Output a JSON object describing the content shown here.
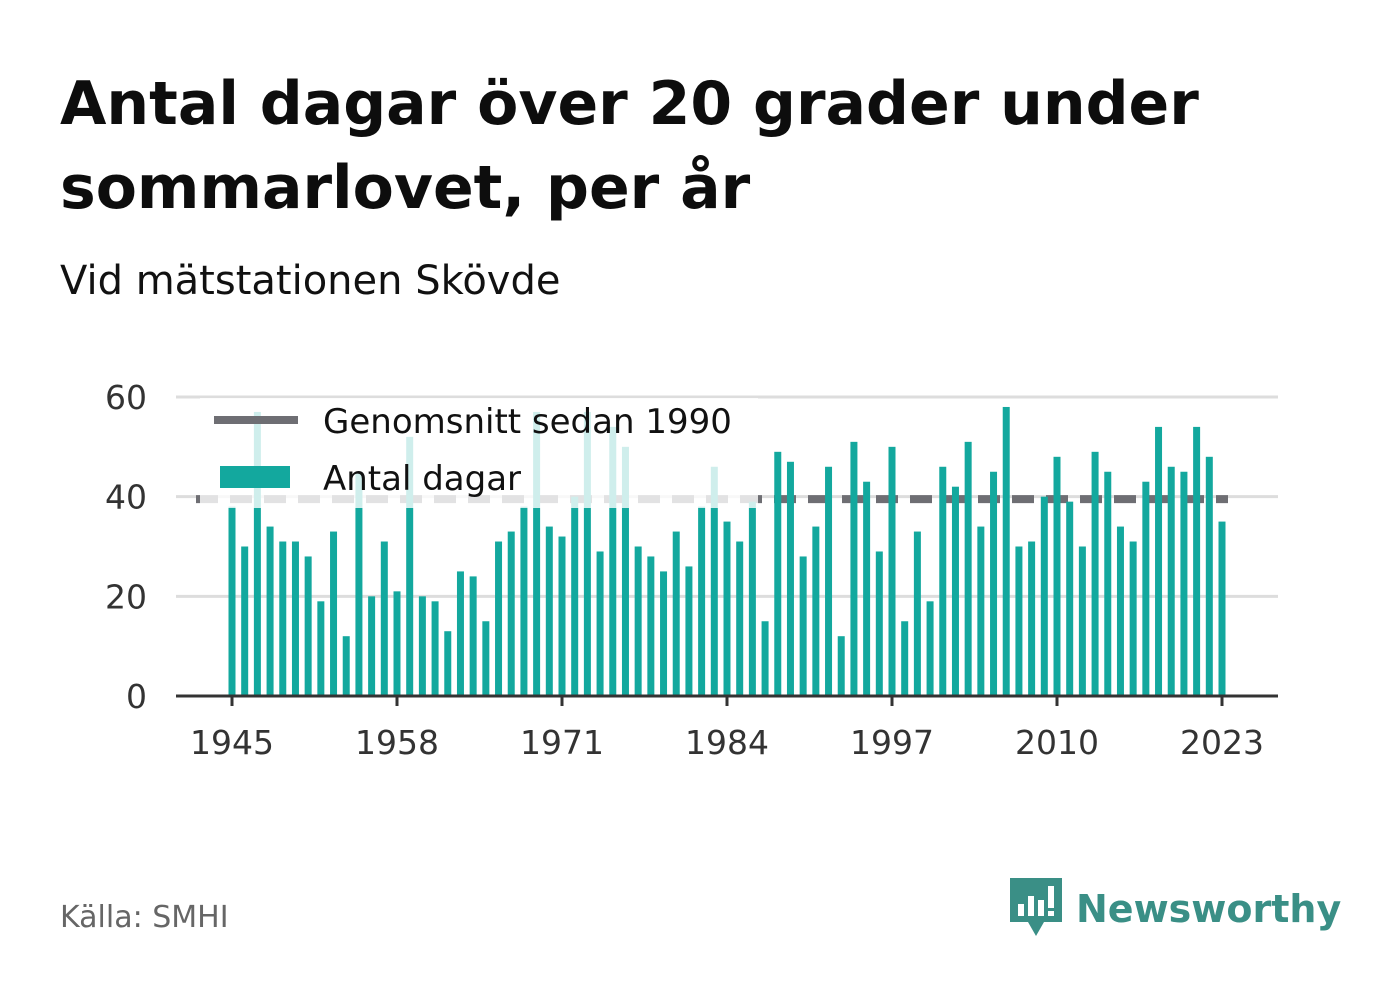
{
  "title": "Antal dagar över 20 grader under sommarlovet, per år",
  "subtitle": "Vid mätstationen Skövde",
  "source": "Källa: SMHI",
  "brand": {
    "name": "Newsworthy",
    "icon": "newsworthy-logo-icon",
    "color": "#3a8f86"
  },
  "colors": {
    "bars": "#13a89e",
    "average": "#6e6e73",
    "grid": "#dddddd",
    "axis": "#333333"
  },
  "chart_data": {
    "type": "bar",
    "x": [
      1945,
      1946,
      1947,
      1948,
      1949,
      1950,
      1951,
      1952,
      1953,
      1954,
      1955,
      1956,
      1957,
      1958,
      1959,
      1960,
      1961,
      1962,
      1963,
      1964,
      1965,
      1966,
      1967,
      1968,
      1969,
      1970,
      1971,
      1972,
      1973,
      1974,
      1975,
      1976,
      1977,
      1978,
      1979,
      1980,
      1981,
      1982,
      1983,
      1984,
      1985,
      1986,
      1987,
      1988,
      1989,
      1990,
      1991,
      1992,
      1993,
      1994,
      1995,
      1996,
      1997,
      1998,
      1999,
      2000,
      2001,
      2002,
      2003,
      2004,
      2005,
      2006,
      2007,
      2008,
      2009,
      2010,
      2011,
      2012,
      2013,
      2014,
      2015,
      2016,
      2017,
      2018,
      2019,
      2020,
      2021,
      2022,
      2023
    ],
    "series": [
      {
        "name": "Antal dagar",
        "values": [
          38,
          30,
          57,
          34,
          31,
          31,
          28,
          19,
          33,
          12,
          45,
          20,
          31,
          21,
          52,
          20,
          19,
          13,
          25,
          24,
          15,
          31,
          33,
          38,
          57,
          34,
          32,
          40,
          57,
          29,
          54,
          50,
          30,
          28,
          25,
          33,
          26,
          38,
          46,
          35,
          31,
          39,
          15,
          49,
          47,
          28,
          34,
          46,
          12,
          51,
          43,
          29,
          50,
          15,
          33,
          19,
          46,
          42,
          51,
          34,
          45,
          58,
          30,
          31,
          40,
          48,
          39,
          30,
          49,
          45,
          34,
          31,
          43,
          54,
          46,
          45,
          54,
          48,
          35
        ]
      },
      {
        "name": "Genomsnitt sedan 1990",
        "type": "line",
        "value": 39.5
      }
    ],
    "xticks": [
      "1945",
      "1958",
      "1971",
      "1984",
      "1997",
      "2010",
      "2023"
    ],
    "yticks": [
      "0",
      "20",
      "40",
      "60"
    ],
    "ylim": [
      0,
      60
    ],
    "grid": true,
    "legend_position": "top-left"
  }
}
